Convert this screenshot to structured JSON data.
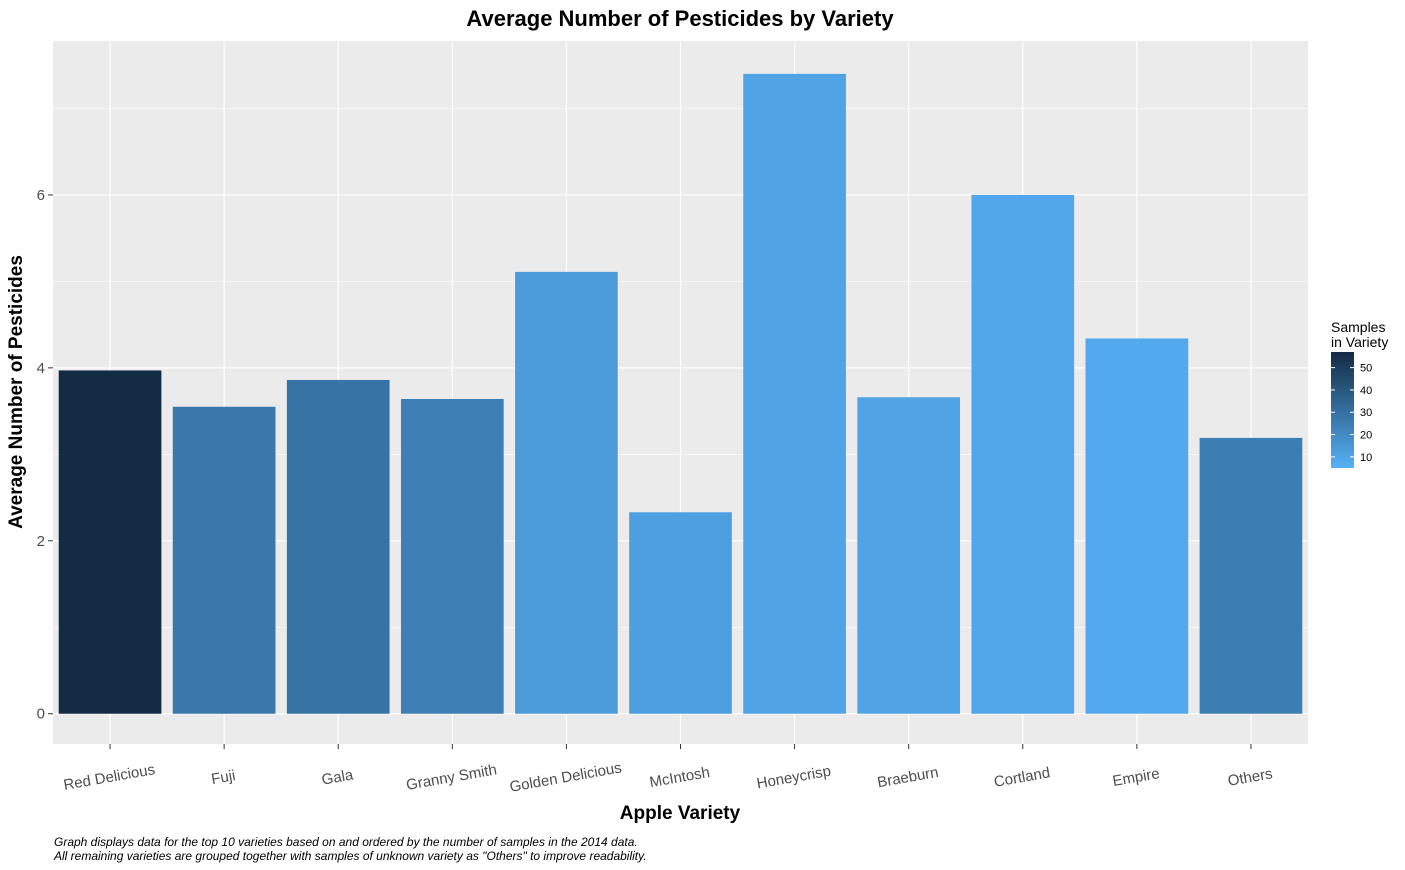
{
  "chart_data": {
    "type": "bar",
    "title": "Average Number of Pesticides by Variety",
    "xlabel": "Apple Variety",
    "ylabel": "Average Number of Pesticides",
    "categories": [
      "Red Delicious",
      "Fuji",
      "Gala",
      "Granny Smith",
      "Golden Delicious",
      "McIntosh",
      "Honeycrisp",
      "Braeburn",
      "Cortland",
      "Empire",
      "Others"
    ],
    "values": [
      3.97,
      3.55,
      3.86,
      3.64,
      5.11,
      2.33,
      7.4,
      3.66,
      6.0,
      4.34,
      3.19
    ],
    "samples": [
      57,
      27,
      29,
      24,
      13,
      12,
      10,
      10,
      9,
      8,
      25
    ],
    "ylim": [
      -0.35,
      7.78
    ],
    "yticks": [
      0,
      2,
      4,
      6
    ],
    "ytick_labels": [
      "0",
      "2",
      "4",
      "6"
    ],
    "grid": true,
    "colors": {
      "panel_background": "#ebebeb",
      "grid": "#ffffff",
      "fill_low": "#56b1f7",
      "fill_high": "#132b43"
    },
    "legend": {
      "title_line1": "Samples",
      "title_line2": "in Variety",
      "position": "right",
      "range": [
        5,
        57
      ],
      "breaks": [
        10,
        20,
        30,
        40,
        50
      ],
      "break_labels": [
        "10",
        "20",
        "30",
        "40",
        "50"
      ]
    },
    "caption_line1": "Graph displays data for the top 10 varieties based on and ordered by the number of samples in the 2014 data.",
    "caption_line2": "All remaining varieties are grouped together with samples of unknown variety as \"Others\" to improve readability."
  }
}
